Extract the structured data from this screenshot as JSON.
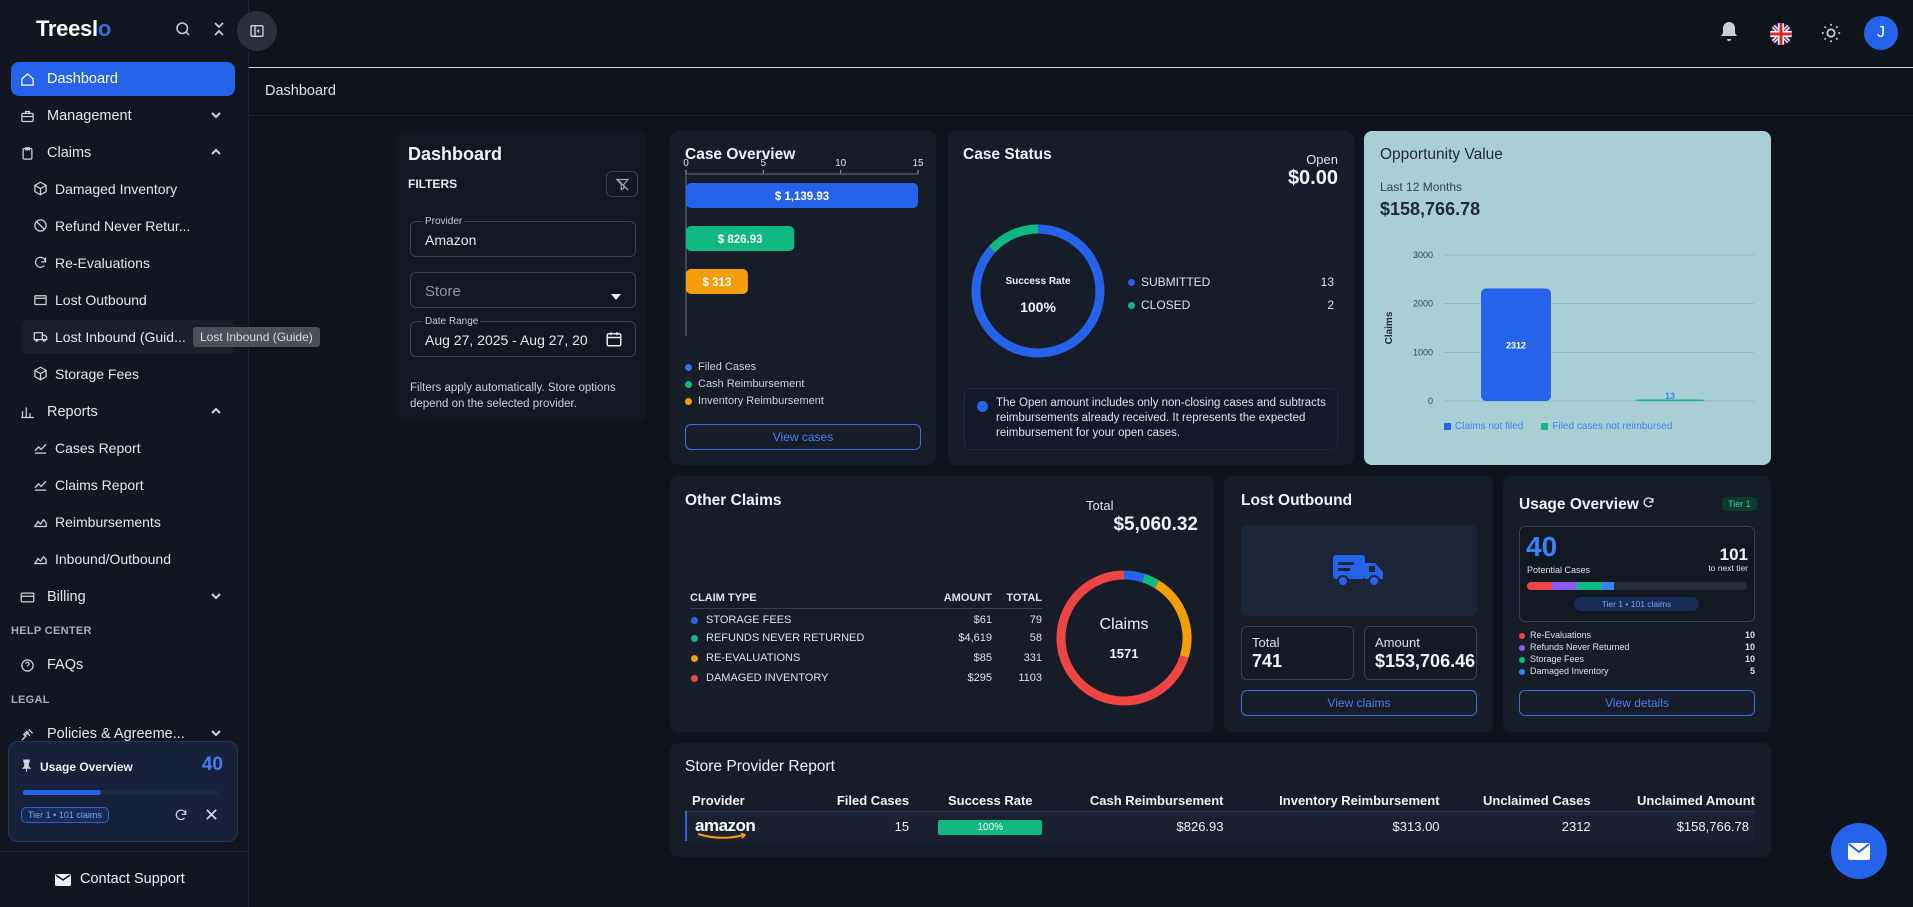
{
  "app": {
    "logo_main": "Treesl",
    "logo_accent": "o"
  },
  "sidebar": {
    "items": [
      {
        "label": "Dashboard"
      },
      {
        "label": "Management"
      },
      {
        "label": "Claims"
      },
      {
        "label": "Reports"
      },
      {
        "label": "Billing"
      }
    ],
    "claims_sub": [
      "Damaged Inventory",
      "Refund Never Retur...",
      "Re-Evaluations",
      "Lost Outbound",
      "Lost Inbound (Guid...",
      "Storage Fees"
    ],
    "reports_sub": [
      "Cases Report",
      "Claims Report",
      "Reimbursements",
      "Inbound/Outbound"
    ],
    "help_center": "HELP CENTER",
    "faqs": "FAQs",
    "legal": "LEGAL",
    "policies": "Policies & Agreeme...",
    "tooltip": "Lost Inbound (Guide)",
    "usage": {
      "title": "Usage Overview",
      "count": "40",
      "tier": "Tier 1 • 101 claims",
      "progress": 0.4
    },
    "contact": "Contact Support"
  },
  "header": {
    "avatar": "J",
    "breadcrumb": "Dashboard"
  },
  "filters": {
    "title": "Dashboard",
    "subtitle": "FILTERS",
    "provider_label": "Provider",
    "provider_value": "Amazon",
    "store_placeholder": "Store",
    "date_label": "Date Range",
    "date_value": "Aug 27, 2025 - Aug 27, 20",
    "note": "Filters apply automatically. Store options depend on the selected provider."
  },
  "case_overview": {
    "title": "Case Overview",
    "ticks": [
      "0",
      "5",
      "10",
      "15"
    ],
    "bars": [
      {
        "label": "$ 1,139.93",
        "value": 15,
        "color": "#2563eb"
      },
      {
        "label": "$ 826.93",
        "value": 7,
        "color": "#10b981"
      },
      {
        "label": "$ 313",
        "value": 4,
        "color": "#f59e0b"
      }
    ],
    "legend": [
      {
        "label": "Filed Cases",
        "color": "#3b6fe6"
      },
      {
        "label": "Cash Reimbursement",
        "color": "#10b981"
      },
      {
        "label": "Inventory Reimbursement",
        "color": "#f59e0b"
      }
    ],
    "button": "View cases"
  },
  "case_status": {
    "title": "Case Status",
    "open_label": "Open",
    "open_value": "$0.00",
    "center_label": "Success Rate",
    "center_value": "100%",
    "rows": [
      {
        "label": "SUBMITTED",
        "value": "13",
        "color": "#2563eb"
      },
      {
        "label": "CLOSED",
        "value": "2",
        "color": "#10b981"
      }
    ],
    "note": "The Open amount includes only non-closing cases and subtracts reimbursements already received. It represents the expected reimbursement for your open cases."
  },
  "opportunity": {
    "title": "Opportunity Value",
    "period": "Last 12 Months",
    "value": "$158,766.78",
    "ylabel": "Claims",
    "yticks": [
      "3000",
      "2000",
      "1000",
      "0"
    ],
    "legend": [
      "Claims not filed",
      "Filed cases not reimbursed"
    ]
  },
  "other_claims": {
    "title": "Other Claims",
    "total_label": "Total",
    "total_value": "$5,060.32",
    "headers": [
      "CLAIM TYPE",
      "AMOUNT",
      "TOTAL"
    ],
    "rows": [
      {
        "type": "STORAGE FEES",
        "amount": "$61",
        "total": "79",
        "color": "#2563eb"
      },
      {
        "type": "REFUNDS NEVER RETURNED",
        "amount": "$4,619",
        "total": "58",
        "color": "#10b981"
      },
      {
        "type": "RE-EVALUATIONS",
        "amount": "$85",
        "total": "331",
        "color": "#f59e0b"
      },
      {
        "type": "DAMAGED INVENTORY",
        "amount": "$295",
        "total": "1103",
        "color": "#ef4444"
      }
    ],
    "donut_label": "Claims",
    "donut_value": "1571"
  },
  "lost_outbound": {
    "title": "Lost Outbound",
    "total_label": "Total",
    "total_value": "741",
    "amount_label": "Amount",
    "amount_value": "$153,706.46",
    "button": "View claims"
  },
  "usage_overview": {
    "title": "Usage Overview",
    "tier": "Tier 1",
    "count": "40",
    "count_label": "Potential Cases",
    "next": "101",
    "next_label": "to next tier",
    "chip": "Tier 1 • 101 claims",
    "rows": [
      {
        "label": "Re-Evaluations",
        "value": "10",
        "color": "#ef4444"
      },
      {
        "label": "Refunds Never Returned",
        "value": "10",
        "color": "#8b5cf6"
      },
      {
        "label": "Storage Fees",
        "value": "10",
        "color": "#10b981"
      },
      {
        "label": "Damaged Inventory",
        "value": "5",
        "color": "#3b82f6"
      }
    ],
    "button": "View details"
  },
  "store_report": {
    "title": "Store Provider Report",
    "headers": [
      "Provider",
      "Filed Cases",
      "Success Rate",
      "Cash Reimbursement",
      "Inventory Reimbursement",
      "Unclaimed Cases",
      "Unclaimed Amount"
    ],
    "row": {
      "provider": "amazon",
      "filed": "15",
      "rate": "100%",
      "cash": "$826.93",
      "inventory": "$313.00",
      "unclaimed_cases": "2312",
      "unclaimed_amount": "$158,766.78"
    }
  },
  "chart_data": [
    {
      "type": "bar",
      "title": "Case Overview",
      "orientation": "horizontal",
      "categories": [
        "Filed Cases",
        "Cash Reimbursement",
        "Inventory Reimbursement"
      ],
      "values": [
        15,
        7,
        4
      ],
      "data_labels": [
        "$ 1,139.93",
        "$ 826.93",
        "$ 313"
      ],
      "xlim": [
        0,
        15
      ]
    },
    {
      "type": "pie",
      "title": "Case Status",
      "categories": [
        "SUBMITTED",
        "CLOSED"
      ],
      "values": [
        13,
        2
      ]
    },
    {
      "type": "bar",
      "title": "Opportunity Value",
      "ylabel": "Claims",
      "categories": [
        "Claims not filed",
        "Filed cases not reimbursed"
      ],
      "values": [
        2312,
        13
      ],
      "ylim": [
        0,
        3000
      ],
      "grid": true,
      "legend": "bottom"
    },
    {
      "type": "pie",
      "title": "Other Claims",
      "categories": [
        "STORAGE FEES",
        "REFUNDS NEVER RETURNED",
        "RE-EVALUATIONS",
        "DAMAGED INVENTORY"
      ],
      "values": [
        79,
        58,
        331,
        1103
      ]
    }
  ]
}
